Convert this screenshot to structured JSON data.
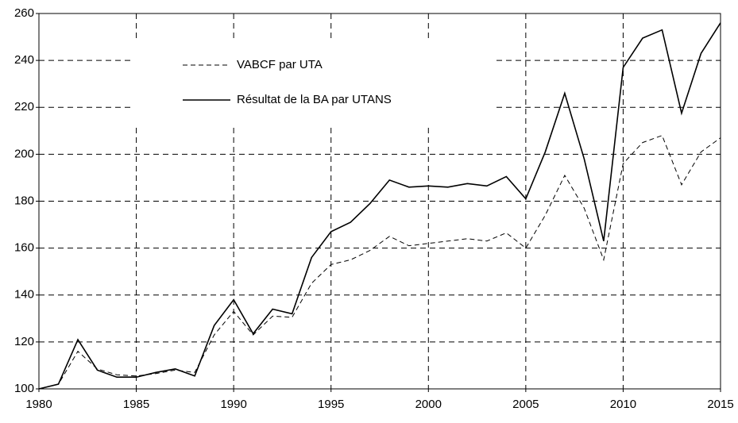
{
  "chart_data": {
    "type": "line",
    "x": [
      1980,
      1981,
      1982,
      1983,
      1984,
      1985,
      1986,
      1987,
      1988,
      1989,
      1990,
      1991,
      1992,
      1993,
      1994,
      1995,
      1996,
      1997,
      1998,
      1999,
      2000,
      2001,
      2002,
      2003,
      2004,
      2005,
      2006,
      2007,
      2008,
      2009,
      2010,
      2011,
      2012,
      2013,
      2014,
      2015
    ],
    "series": [
      {
        "name": "VABCF par UTA",
        "color": "#000000",
        "line_style": "dashed",
        "values": [
          100,
          102,
          116,
          108.5,
          106,
          105.5,
          106.5,
          108,
          107,
          123,
          133,
          123,
          131,
          130.5,
          145,
          153,
          155,
          159,
          165,
          161,
          162,
          163,
          164,
          163,
          166.5,
          160,
          174,
          191,
          177,
          155,
          196,
          205,
          208,
          187,
          201,
          207
        ]
      },
      {
        "name": "Résultat de la BA par UTANS",
        "color": "#000000",
        "line_style": "solid",
        "values": [
          100,
          102,
          121,
          108,
          105,
          105,
          107,
          108.5,
          105.5,
          127,
          138,
          123.5,
          134,
          132,
          156,
          167,
          171,
          179,
          189,
          186,
          186.5,
          186,
          187.5,
          186.5,
          190.5,
          181,
          201,
          226,
          198,
          163,
          237,
          249.5,
          253,
          217.5,
          243,
          256
        ]
      }
    ],
    "xlim": [
      1980,
      2015
    ],
    "xticks": [
      1980,
      1985,
      1990,
      1995,
      2000,
      2005,
      2010,
      2015
    ],
    "ylim": [
      100,
      260
    ],
    "yticks": [
      100,
      120,
      140,
      160,
      180,
      200,
      220,
      240,
      260
    ],
    "grid": true,
    "legend": "upper-left"
  }
}
